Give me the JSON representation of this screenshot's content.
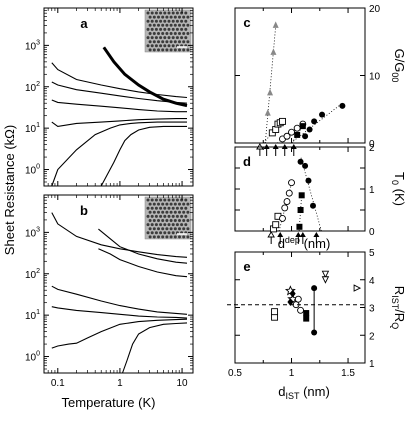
{
  "chart_data": [
    {
      "panel": "a",
      "type": "line",
      "xscale": "log",
      "yscale": "log",
      "xlim": [
        0.06,
        15
      ],
      "ylim": [
        0.4,
        8000
      ],
      "xticks": [
        0.1,
        1,
        10
      ],
      "xtick_labels": [
        "",
        "",
        ""
      ],
      "yticks": [
        1,
        10,
        100,
        1000
      ],
      "ytick_labels": [
        "10⁰",
        "10¹",
        "10²",
        "10³"
      ],
      "has_inset_image": true,
      "series": [
        {
          "emphasis": true,
          "x": [
            0.55,
            0.8,
            1.2,
            2,
            3,
            5,
            8,
            12
          ],
          "y": [
            900,
            400,
            200,
            110,
            75,
            50,
            40,
            35
          ]
        },
        {
          "x": [
            0.08,
            0.1,
            0.2,
            0.5,
            1,
            2,
            4,
            8,
            12
          ],
          "y": [
            380,
            260,
            150,
            110,
            90,
            75,
            65,
            58,
            55
          ]
        },
        {
          "x": [
            0.08,
            0.1,
            0.2,
            0.5,
            1,
            2,
            4,
            8,
            12
          ],
          "y": [
            130,
            110,
            85,
            70,
            60,
            52,
            46,
            42,
            40
          ]
        },
        {
          "x": [
            0.08,
            0.1,
            0.2,
            0.5,
            1,
            2,
            4,
            8,
            12
          ],
          "y": [
            48,
            42,
            38,
            34,
            31,
            28,
            26,
            25,
            25
          ]
        },
        {
          "x": [
            0.08,
            0.1,
            0.2,
            0.5,
            1,
            2,
            4,
            8,
            12
          ],
          "y": [
            14,
            11,
            13,
            14,
            15,
            16,
            16.5,
            17,
            17
          ]
        },
        {
          "x": [
            0.08,
            0.1,
            0.2,
            0.4,
            0.7,
            1,
            1.5,
            2,
            4,
            8,
            12
          ],
          "y": [
            0.3,
            1.0,
            3.0,
            7,
            10,
            12,
            13,
            13.5,
            14,
            14,
            14
          ]
        },
        {
          "x": [
            0.5,
            0.8,
            1,
            1.2,
            1.5,
            2,
            3,
            5,
            12
          ],
          "y": [
            0.3,
            1.5,
            3,
            5,
            7,
            9,
            10.5,
            11,
            11
          ]
        }
      ]
    },
    {
      "panel": "b",
      "type": "line",
      "xscale": "log",
      "yscale": "log",
      "xlim": [
        0.06,
        15
      ],
      "ylim": [
        0.4,
        8000
      ],
      "xticks": [
        0.1,
        1,
        10
      ],
      "xtick_labels": [
        "0.1",
        "1",
        "10"
      ],
      "yticks": [
        1,
        10,
        100,
        1000
      ],
      "ytick_labels": [
        "10⁰",
        "10¹",
        "10²",
        "10³"
      ],
      "xlabel": "Temperature (K)",
      "has_inset_image": true,
      "series": [
        {
          "x": [
            0.08,
            0.1,
            0.2,
            0.5,
            1,
            2,
            4,
            8,
            12
          ],
          "y": [
            3000,
            1600,
            800,
            500,
            400,
            340,
            290,
            260,
            250
          ]
        },
        {
          "x": [
            0.45,
            0.7,
            1,
            2,
            4,
            8,
            12
          ],
          "y": [
            1200,
            700,
            450,
            300,
            230,
            190,
            180
          ]
        },
        {
          "x": [
            0.45,
            0.7,
            1,
            2,
            4,
            8,
            12
          ],
          "y": [
            400,
            300,
            220,
            150,
            110,
            90,
            85
          ]
        },
        {
          "x": [
            0.08,
            0.1,
            0.2,
            0.5,
            1,
            2,
            4,
            8,
            12
          ],
          "y": [
            50,
            42,
            32,
            22,
            17,
            14,
            12,
            11,
            10.5
          ]
        },
        {
          "x": [
            0.08,
            0.1,
            0.2,
            0.5,
            1,
            2,
            4,
            8,
            12
          ],
          "y": [
            16,
            15,
            13,
            11.5,
            10.5,
            9.5,
            9,
            8.8,
            8.5
          ]
        },
        {
          "x": [
            0.08,
            0.1,
            0.15,
            0.2,
            0.3,
            0.5,
            1,
            2,
            4,
            8,
            12
          ],
          "y": [
            1.6,
            1.8,
            2.0,
            2.1,
            2.8,
            4,
            6,
            7,
            7.5,
            7.8,
            8
          ]
        },
        {
          "x": [
            1.1,
            1.3,
            1.6,
            2,
            3,
            5,
            8,
            12
          ],
          "y": [
            0.3,
            0.8,
            2,
            3.5,
            5,
            6,
            6.3,
            6.5
          ]
        }
      ]
    },
    {
      "panel": "c",
      "type": "scatter",
      "xlim": [
        0.5,
        1.65
      ],
      "ylim": [
        0,
        20
      ],
      "yticks": [
        0,
        10,
        20
      ],
      "ytick_labels": [
        "0",
        "10",
        "20"
      ],
      "y2label": "G/G₀₀",
      "onset_arrows_x": [
        0.72,
        0.78,
        0.86,
        0.94,
        1.02
      ],
      "series": [
        {
          "marker": "triangle-filled-gray",
          "x": [
            0.79,
            0.81,
            0.84,
            0.86
          ],
          "y": [
            4.5,
            7.5,
            13.5,
            17.5
          ]
        },
        {
          "marker": "square-open",
          "x": [
            0.83,
            0.86,
            0.88,
            0.9,
            0.92
          ],
          "y": [
            1.5,
            2.0,
            2.8,
            3.0,
            3.2
          ]
        },
        {
          "marker": "circle-open",
          "x": [
            0.92,
            0.96,
            1.0,
            1.05,
            1.1
          ],
          "y": [
            0.6,
            1.0,
            1.6,
            2.2,
            2.8
          ]
        },
        {
          "marker": "square-filled",
          "x": [
            1.05,
            1.1
          ],
          "y": [
            1.2,
            2.5
          ]
        },
        {
          "marker": "circle-filled",
          "x": [
            1.12,
            1.16,
            1.2,
            1.27,
            1.45
          ],
          "y": [
            1.0,
            2.0,
            3.2,
            4.2,
            5.5
          ]
        }
      ]
    },
    {
      "panel": "d",
      "type": "scatter",
      "xlim": [
        0.5,
        1.65
      ],
      "ylim": [
        0,
        2
      ],
      "yticks": [
        0,
        0.5,
        1,
        1.5,
        2
      ],
      "ytick_labels": [
        "0",
        "",
        "1",
        "",
        "2"
      ],
      "xlabel": "d^dep (nm)",
      "y2label": "T₀ (K)",
      "onset_arrows_x": [
        0.82,
        0.9,
        1.06,
        1.1,
        1.22
      ],
      "series": [
        {
          "marker": "square-open",
          "x": [
            0.84,
            0.86,
            0.88
          ],
          "y": [
            0.05,
            0.15,
            0.35
          ]
        },
        {
          "marker": "circle-open",
          "x": [
            0.92,
            0.94,
            0.96,
            0.98,
            1.0
          ],
          "y": [
            0.3,
            0.55,
            0.7,
            0.9,
            1.15
          ]
        },
        {
          "marker": "square-filled",
          "x": [
            1.07,
            1.08,
            1.09
          ],
          "y": [
            0.1,
            0.5,
            0.85
          ]
        },
        {
          "marker": "circle-filled",
          "x": [
            1.08,
            1.12,
            1.15,
            1.19
          ],
          "y": [
            1.65,
            1.55,
            1.2,
            0.6
          ]
        }
      ]
    },
    {
      "panel": "e",
      "type": "scatter",
      "xlim": [
        0.5,
        1.65
      ],
      "ylim": [
        1,
        5
      ],
      "xticks": [
        0.5,
        1.0,
        1.5
      ],
      "xtick_labels": [
        "0.5",
        "1",
        "1.5"
      ],
      "yticks": [
        1,
        2,
        3,
        4,
        5
      ],
      "ytick_labels": [
        "1",
        "2",
        "3",
        "4",
        "5"
      ],
      "xlabel": "d_IST (nm)",
      "y2label": "R_IST/R_Q",
      "reference_line_y": 3.1,
      "series": [
        {
          "marker": "square-open",
          "x": [
            0.85,
            0.85
          ],
          "y": [
            2.65,
            2.85
          ]
        },
        {
          "marker": "star-open",
          "x": [
            0.99,
            1.01
          ],
          "y": [
            3.6,
            3.3
          ]
        },
        {
          "marker": "diamond-filled",
          "x": [
            0.99,
            1.01
          ],
          "y": [
            3.2,
            3.5
          ]
        },
        {
          "marker": "circle-open",
          "x": [
            1.04,
            1.06,
            1.08
          ],
          "y": [
            3.1,
            3.3,
            2.9
          ]
        },
        {
          "marker": "square-filled",
          "x": [
            1.13,
            1.13
          ],
          "y": [
            2.6,
            2.8
          ]
        },
        {
          "marker": "circle-filled",
          "x": [
            1.2,
            1.2
          ],
          "y": [
            3.7,
            2.1
          ]
        },
        {
          "marker": "triangle-down-open",
          "x": [
            1.3,
            1.3
          ],
          "y": [
            4.2,
            4.0
          ]
        },
        {
          "marker": "triangle-right-open",
          "x": [
            1.58
          ],
          "y": [
            3.7
          ]
        }
      ]
    }
  ],
  "shared": {
    "ylabel_left": "Sheet Resistance (kΩ)"
  }
}
